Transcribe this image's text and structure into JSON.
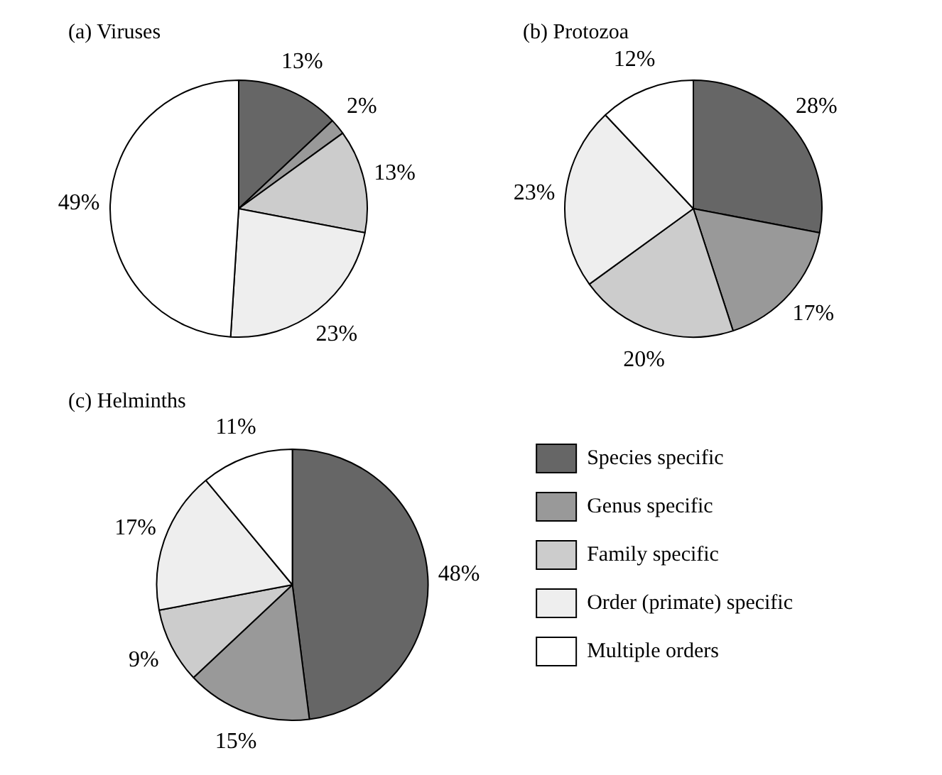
{
  "chart_data": [
    {
      "type": "pie",
      "title": "(a) Viruses",
      "categories": [
        null,
        null,
        null,
        null,
        null
      ],
      "values": [
        13,
        2,
        13,
        23,
        49
      ],
      "value_labels": [
        "13%",
        "2%",
        "13%",
        "23%",
        "49%"
      ],
      "colors": [
        "#666666",
        "#999999",
        "#cccccc",
        "#eeeeee",
        "#ffffff"
      ],
      "legend": false
    },
    {
      "type": "pie",
      "title": "(b) Protozoa",
      "categories": [
        null,
        null,
        null,
        null,
        null
      ],
      "values": [
        28,
        17,
        20,
        23,
        12
      ],
      "value_labels": [
        "28%",
        "17%",
        "20%",
        "23%",
        "12%"
      ],
      "colors": [
        "#666666",
        "#999999",
        "#cccccc",
        "#eeeeee",
        "#ffffff"
      ],
      "legend": false
    },
    {
      "type": "pie",
      "title": "(c) Helminths",
      "categories": [
        "Species specific",
        "Genus specific",
        "Family specific",
        "Order (primate) specific",
        "Multiple orders"
      ],
      "values": [
        48,
        15,
        9,
        17,
        11
      ],
      "value_labels": [
        "48%",
        "15%",
        "9%",
        "17%",
        "11%"
      ],
      "colors": [
        "#666666",
        "#999999",
        "#cccccc",
        "#eeeeee",
        "#ffffff"
      ],
      "legend": "right"
    }
  ]
}
